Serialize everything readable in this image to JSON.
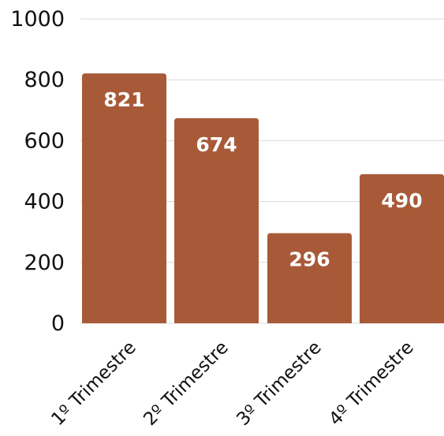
{
  "chart_data": {
    "type": "bar",
    "title": "",
    "xlabel": "",
    "ylabel": "",
    "categories": [
      "1º Trimestre",
      "2º Trimestre",
      "3º Trimestre",
      "4º Trimestre"
    ],
    "values": [
      821,
      674,
      296,
      490
    ],
    "data_labels": [
      "821",
      "674",
      "296",
      "490"
    ],
    "ylim": [
      0,
      1000
    ],
    "y_ticks": [
      0,
      200,
      400,
      600,
      800,
      1000
    ],
    "y_tick_labels": [
      "0",
      "200",
      "400",
      "600",
      "800",
      "1000"
    ],
    "grid": true,
    "legend": "none",
    "bar_color": "#A85A38",
    "grid_color": "#D9D9D9"
  }
}
